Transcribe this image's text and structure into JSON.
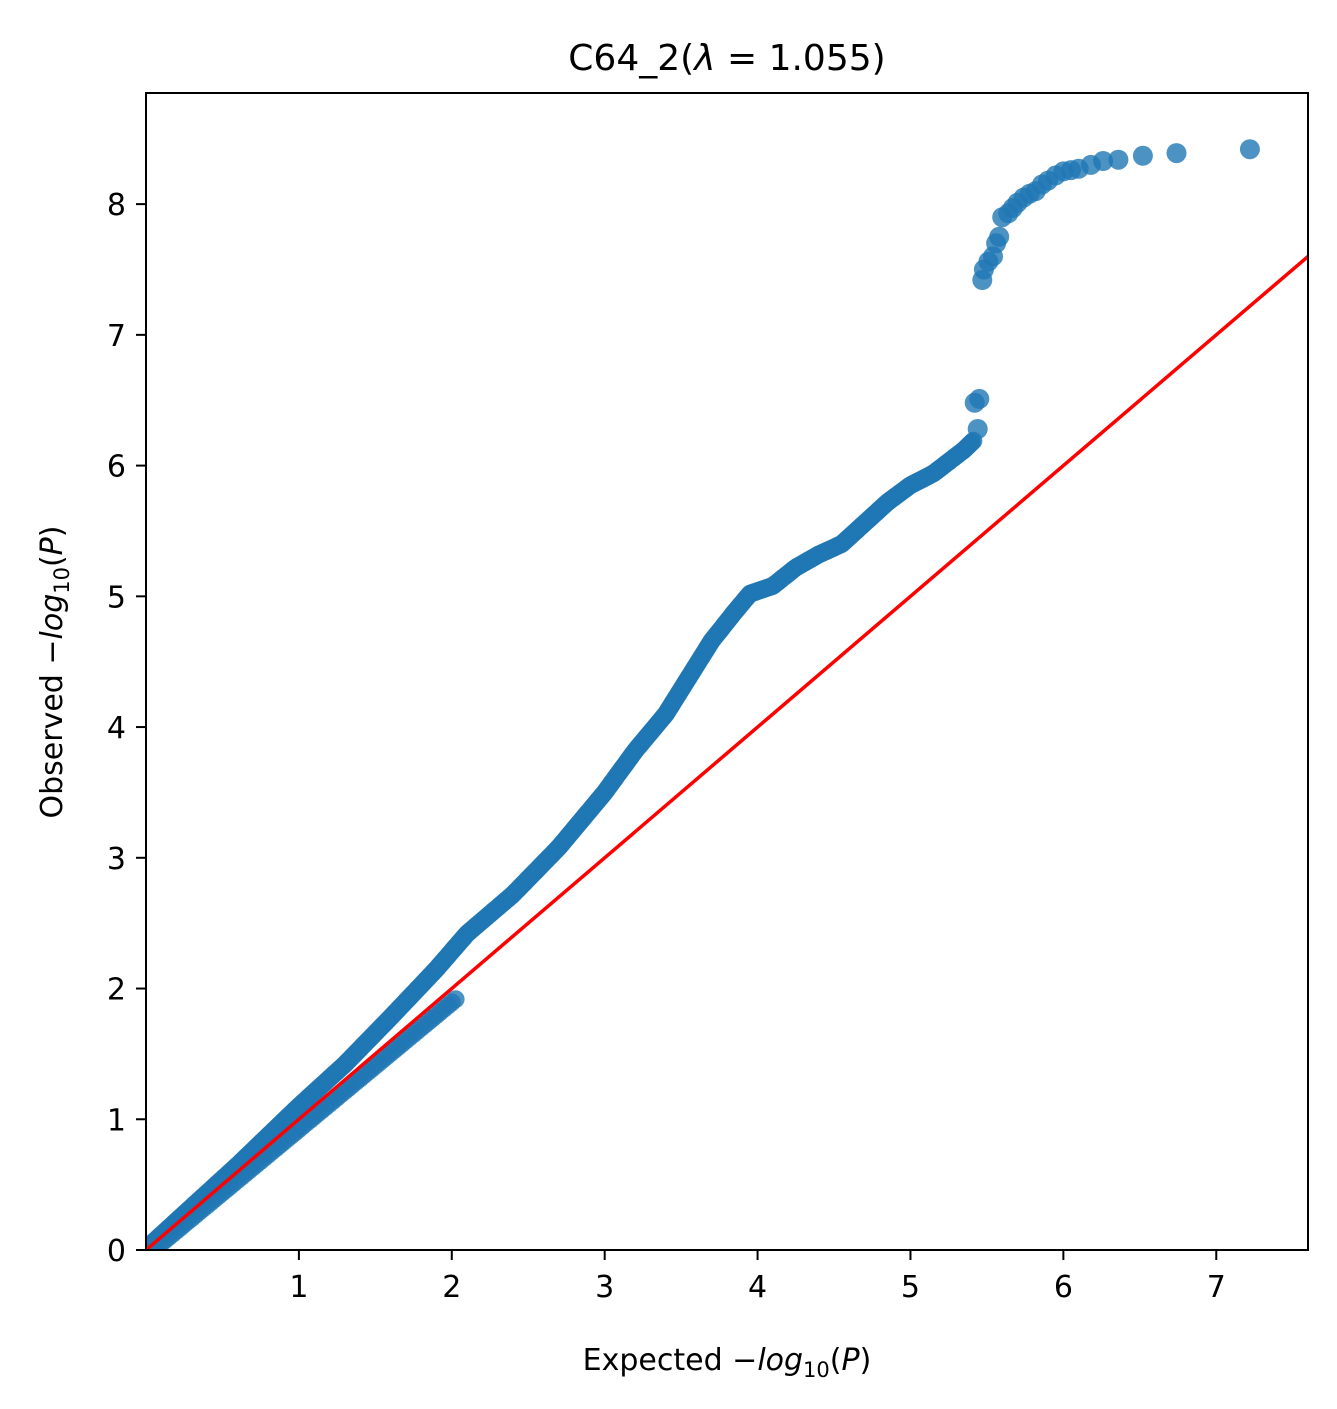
{
  "chart_data": {
    "type": "scatter",
    "title": {
      "prefix": "C64_2(",
      "symbol": "λ",
      "relation": " = ",
      "value": "1.055",
      "suffix": ")"
    },
    "xlabel": {
      "prefix": "Expected −",
      "func": "log",
      "sub": "10",
      "arg_open": "(",
      "arg": "P",
      "arg_close": ")"
    },
    "ylabel": {
      "prefix": "Observed −",
      "func": "log",
      "sub": "10",
      "arg_open": "(",
      "arg": "P",
      "arg_close": ")"
    },
    "xlim": [
      0,
      7.6
    ],
    "ylim": [
      0,
      8.85
    ],
    "x_ticks": [
      1,
      2,
      3,
      4,
      5,
      6,
      7
    ],
    "x_tick_labels": [
      "1",
      "2",
      "3",
      "4",
      "5",
      "6",
      "7"
    ],
    "y_ticks": [
      0,
      1,
      2,
      3,
      4,
      5,
      6,
      7,
      8
    ],
    "y_tick_labels": [
      "0",
      "1",
      "2",
      "3",
      "4",
      "5",
      "6",
      "7",
      "8"
    ],
    "grid": false,
    "legend": "none",
    "colors": {
      "points": "#1f77b4",
      "reference_line": "#ff0000"
    },
    "reference_line": {
      "name": "y = x",
      "x": [
        0,
        7.6
      ],
      "y": [
        0,
        7.6
      ]
    },
    "series": [
      {
        "points_dense_curve": [
          [
            0.02,
            0.03
          ],
          [
            0.3,
            0.33
          ],
          [
            0.6,
            0.65
          ],
          [
            1.0,
            1.1
          ],
          [
            1.3,
            1.42
          ],
          [
            1.6,
            1.78
          ],
          [
            1.9,
            2.15
          ],
          [
            2.1,
            2.42
          ],
          [
            2.4,
            2.72
          ],
          [
            2.7,
            3.08
          ],
          [
            3.0,
            3.5
          ],
          [
            3.2,
            3.82
          ],
          [
            3.4,
            4.1
          ],
          [
            3.55,
            4.38
          ],
          [
            3.7,
            4.66
          ],
          [
            3.85,
            4.88
          ],
          [
            3.95,
            5.02
          ],
          [
            4.1,
            5.08
          ],
          [
            4.25,
            5.22
          ],
          [
            4.4,
            5.32
          ],
          [
            4.55,
            5.4
          ],
          [
            4.7,
            5.56
          ],
          [
            4.85,
            5.72
          ],
          [
            5.0,
            5.85
          ],
          [
            5.15,
            5.94
          ],
          [
            5.25,
            6.03
          ],
          [
            5.35,
            6.12
          ],
          [
            5.42,
            6.2
          ]
        ],
        "points_isolated": [
          [
            5.44,
            6.28
          ],
          [
            5.42,
            6.48
          ],
          [
            5.45,
            6.51
          ],
          [
            5.47,
            7.42
          ],
          [
            5.48,
            7.5
          ],
          [
            5.51,
            7.56
          ],
          [
            5.54,
            7.6
          ],
          [
            5.56,
            7.7
          ],
          [
            5.58,
            7.75
          ],
          [
            5.6,
            7.9
          ],
          [
            5.64,
            7.93
          ],
          [
            5.67,
            7.97
          ],
          [
            5.7,
            8.01
          ],
          [
            5.74,
            8.05
          ],
          [
            5.78,
            8.08
          ],
          [
            5.82,
            8.1
          ],
          [
            5.86,
            8.15
          ],
          [
            5.9,
            8.18
          ],
          [
            5.95,
            8.22
          ],
          [
            6.0,
            8.25
          ],
          [
            6.05,
            8.26
          ],
          [
            6.1,
            8.27
          ],
          [
            6.18,
            8.3
          ],
          [
            6.26,
            8.33
          ],
          [
            6.36,
            8.34
          ],
          [
            6.52,
            8.37
          ],
          [
            6.74,
            8.39
          ],
          [
            7.22,
            8.42
          ]
        ]
      }
    ]
  }
}
